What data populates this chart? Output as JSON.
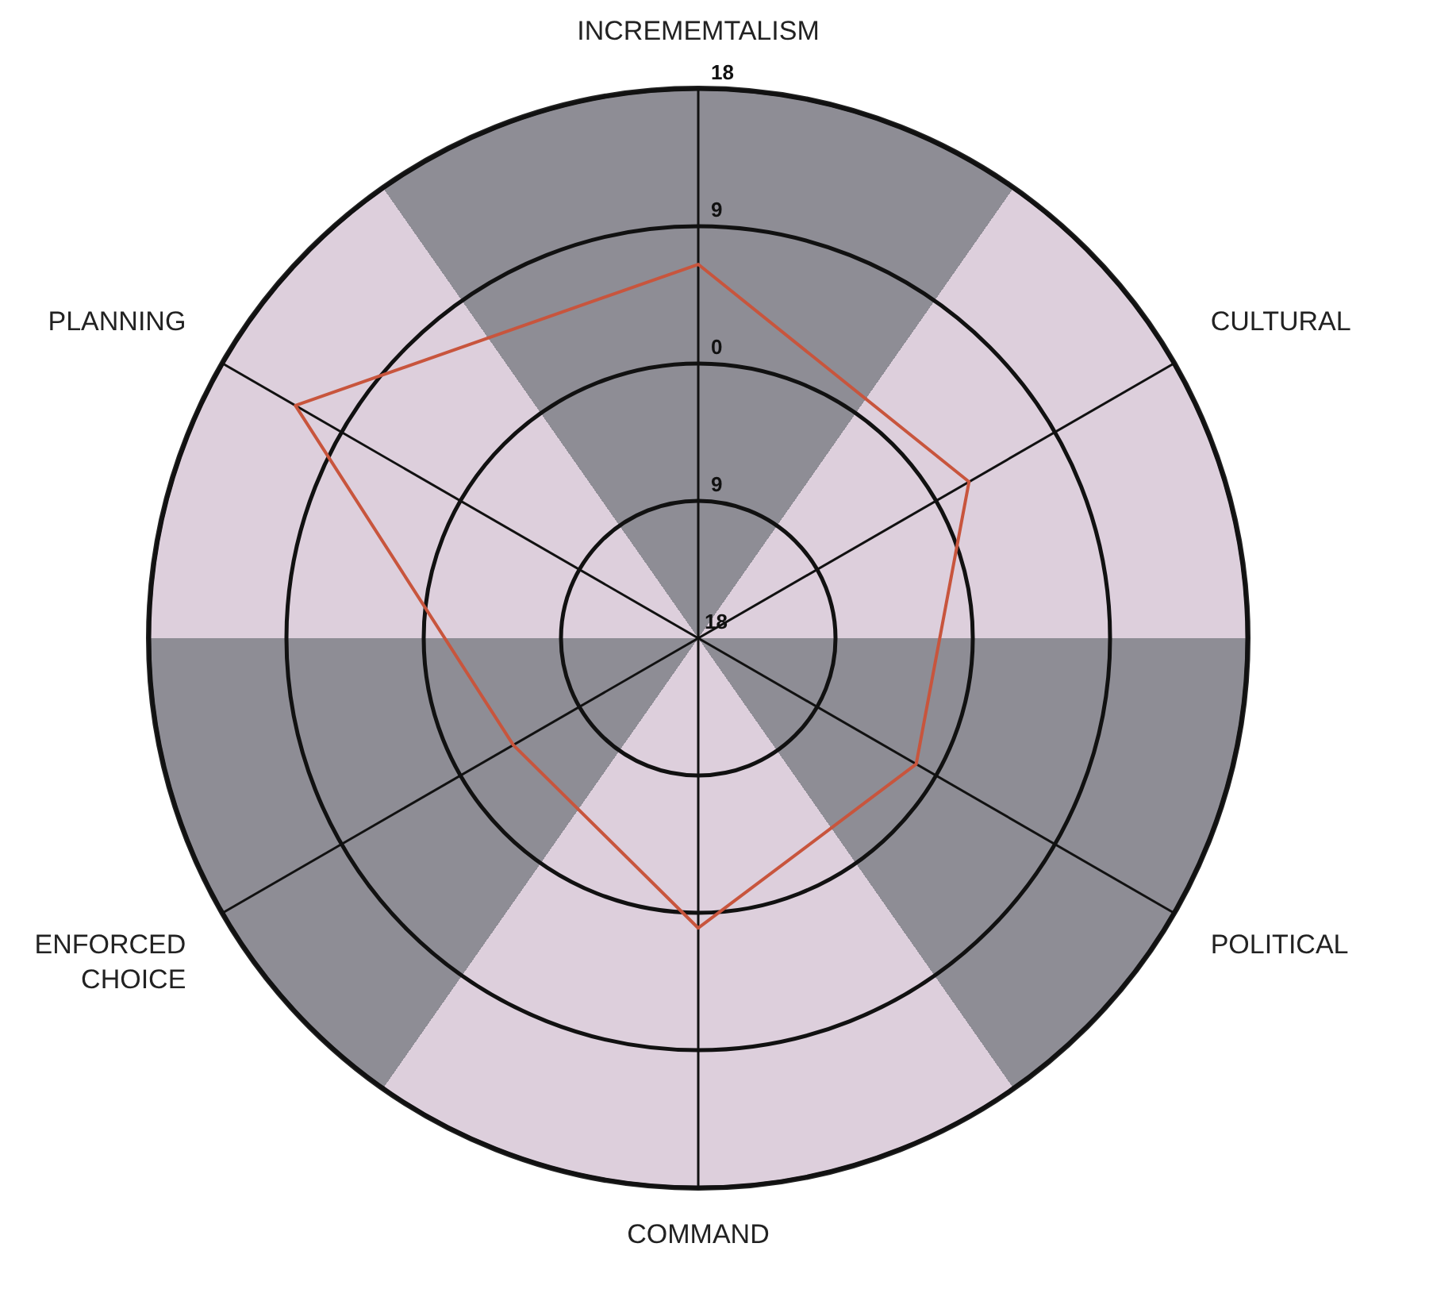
{
  "chart_data": {
    "type": "radar",
    "categories": [
      "INCREMEMTALISM",
      "CULTURAL",
      "POLITICAL",
      "COMMAND",
      "ENFORCED CHOICE",
      "PLANNING"
    ],
    "series": [
      {
        "color": "#c8553d",
        "values": [
          6.5,
          2.5,
          -1.5,
          1,
          -4,
          12.5
        ]
      }
    ],
    "ylim": [
      -18,
      18
    ],
    "yticks": [
      {
        "value": -18,
        "label": "18"
      },
      {
        "value": -9,
        "label": "9"
      },
      {
        "value": 0,
        "label": "0"
      },
      {
        "value": 9,
        "label": "9"
      },
      {
        "value": 18,
        "label": "18"
      }
    ],
    "grid": true,
    "marker": "none"
  }
}
